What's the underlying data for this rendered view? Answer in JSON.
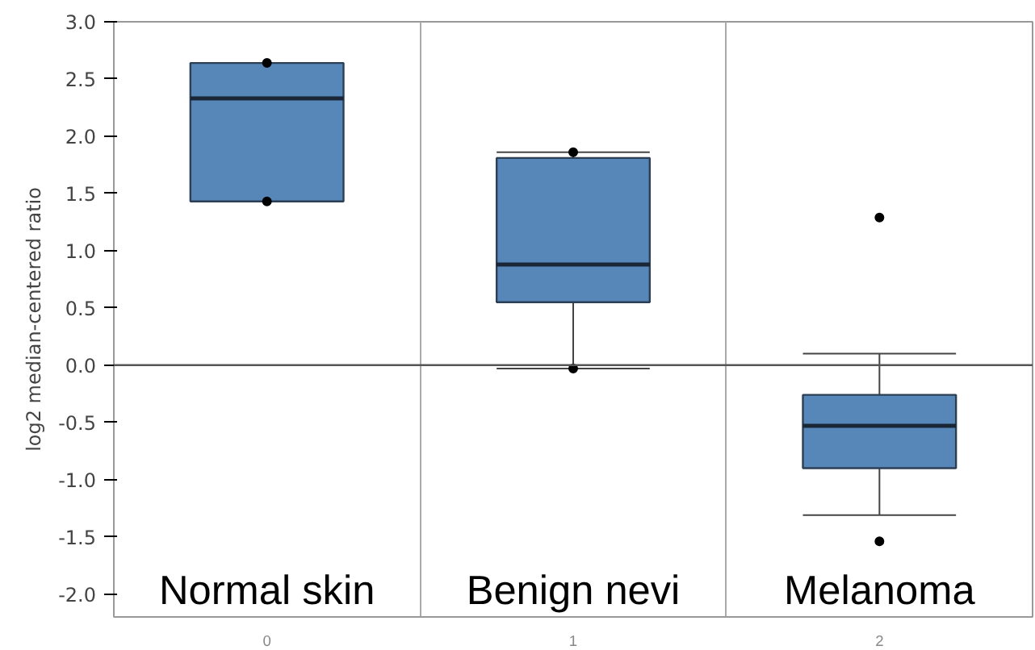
{
  "chart_data": {
    "type": "box",
    "ylabel": "log2 median-centered ratio",
    "categories": [
      "0",
      "1",
      "2"
    ],
    "boxes": [
      {
        "low": 1.43,
        "q1": 1.43,
        "median": 2.33,
        "q3": 2.64,
        "high": 2.64,
        "outliers": [
          1.43,
          2.64
        ]
      },
      {
        "low": -0.03,
        "q1": 0.55,
        "median": 0.88,
        "q3": 1.81,
        "high": 1.86,
        "outliers": [
          -0.03,
          1.86
        ]
      },
      {
        "low": -1.31,
        "q1": -0.9,
        "median": -0.53,
        "q3": -0.26,
        "high": 0.1,
        "outliers": [
          -1.54,
          1.29
        ]
      }
    ],
    "color": "#5687b8",
    "ylim": [
      -2.2,
      3.0
    ],
    "yticks": [
      {
        "value": -2,
        "label": "-2.0"
      },
      -1.5,
      {
        "value": -1,
        "label": "-1.0"
      },
      -0.5,
      {
        "value": 0,
        "label": "0.0"
      },
      0.5,
      {
        "value": 1,
        "label": "1.0"
      },
      1.5,
      {
        "value": 2,
        "label": "2.0"
      },
      2.5,
      {
        "value": 3,
        "label": "3.0"
      }
    ],
    "grid": "x",
    "ref_lines": [
      {
        "axis": "y",
        "value": 0
      }
    ],
    "annotations": [
      "Normal skin",
      "Benign nevi",
      "Melanoma"
    ]
  }
}
